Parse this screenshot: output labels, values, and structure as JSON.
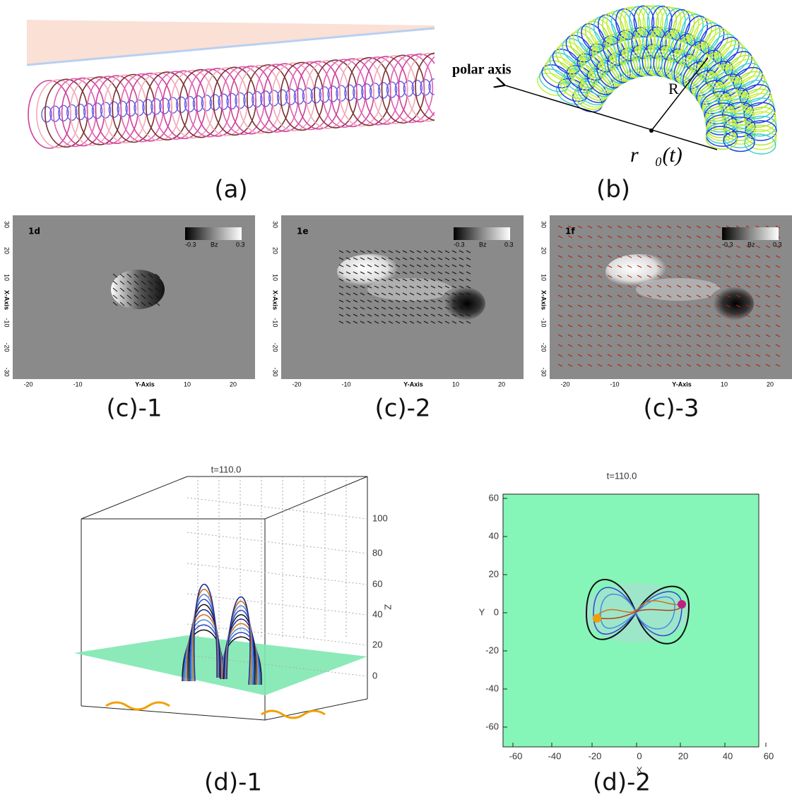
{
  "panels": {
    "a": {
      "label": "(a)"
    },
    "b": {
      "label": "(b)",
      "polar_axis": "polar axis",
      "radius": "R",
      "position": "r⃗₀(t)"
    },
    "c": [
      {
        "label": "(c)-1",
        "title": "1d",
        "colorbar": {
          "min": "-0.3",
          "name": "Bz",
          "max": "0.3"
        },
        "y_axis": "X-Axis",
        "x_axis": "Y-Axis",
        "yticks": [
          "30",
          "20",
          "10",
          "-10",
          "-20",
          "-30"
        ],
        "xticks": [
          "-20",
          "-10",
          "10",
          "20"
        ]
      },
      {
        "label": "(c)-2",
        "title": "1e",
        "colorbar": {
          "min": "-0.3",
          "name": "Bz",
          "max": "0.3"
        },
        "y_axis": "X-Axis",
        "x_axis": "Y-Axis",
        "yticks": [
          "30",
          "20",
          "10",
          "-10",
          "-20",
          "-30"
        ],
        "xticks": [
          "-20",
          "-10",
          "10",
          "20"
        ]
      },
      {
        "label": "(c)-3",
        "title": "1f",
        "colorbar": {
          "min": "-0.3",
          "name": "Bz",
          "max": "0.3"
        },
        "y_axis": "X-Axis",
        "x_axis": "Y-Axis",
        "yticks": [
          "30",
          "20",
          "10",
          "-10",
          "-20",
          "-30"
        ],
        "xticks": [
          "-20",
          "-10",
          "10",
          "20"
        ]
      }
    ],
    "d1": {
      "label": "(d)-1",
      "title": "t=110.0",
      "z_axis": "Z",
      "zticks": [
        "100",
        "80",
        "60",
        "40",
        "20",
        "0"
      ]
    },
    "d2": {
      "label": "(d)-2",
      "title": "t=110.0",
      "x_axis": "X",
      "y_axis": "Y",
      "yticks": [
        "60",
        "40",
        "20",
        "0",
        "-20",
        "-40",
        "-60"
      ],
      "xticks": [
        "-60",
        "-40",
        "-20",
        "0",
        "20",
        "40",
        "60"
      ]
    }
  }
}
